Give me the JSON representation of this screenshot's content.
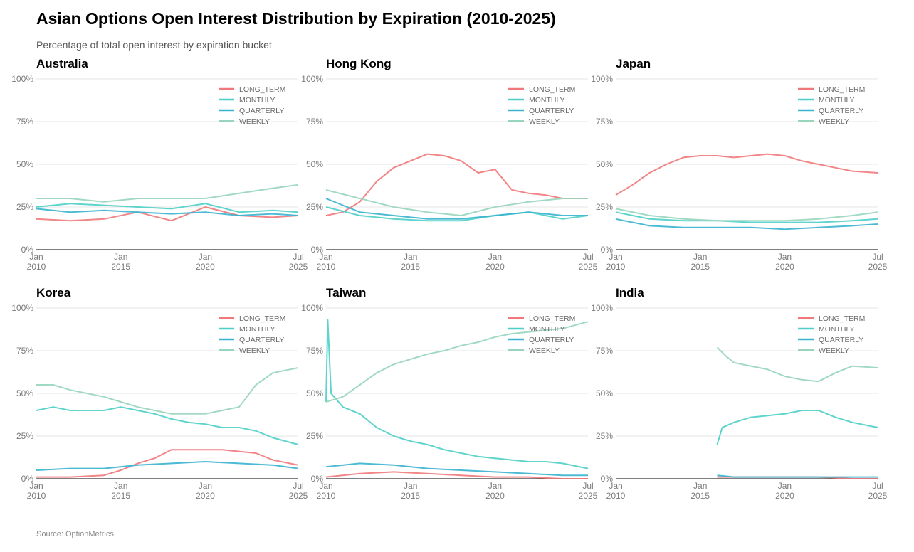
{
  "title": "Asian Options Open Interest Distribution by Expiration (2010-2025)",
  "subtitle": "Percentage of total open interest by expiration bucket",
  "source": "Source: OptionMetrics",
  "colors": {
    "LONG_TERM": "#f0787a",
    "MONTHLY": "#4dcfc7",
    "QUARTERLY": "#3ab3cf",
    "WEEKLY": "#98d5bd"
  },
  "panels_meta": {
    "y_ticks": [
      0,
      25,
      50,
      75,
      100
    ],
    "y_tick_labels": [
      "0%",
      "25%",
      "50%",
      "75%",
      "100%"
    ],
    "x_ticks": [
      {
        "pos": 2010.0,
        "line1": "Jan",
        "line2": "2010"
      },
      {
        "pos": 2015.0,
        "line1": "Jan",
        "line2": "2015"
      },
      {
        "pos": 2020.0,
        "line1": "Jan",
        "line2": "2020"
      },
      {
        "pos": 2025.5,
        "line1": "Jul",
        "line2": "2025"
      }
    ],
    "legend": [
      "LONG_TERM",
      "MONTHLY",
      "QUARTERLY",
      "WEEKLY"
    ]
  },
  "chart_data": [
    {
      "type": "line",
      "title": "Australia",
      "xlim": [
        2010.0,
        2025.5
      ],
      "ylim": [
        0,
        100
      ],
      "series": [
        {
          "name": "LONG_TERM",
          "x": [
            2010.0,
            2012.0,
            2014.0,
            2016.0,
            2018.0,
            2020.0,
            2022.0,
            2024.0,
            2025.5
          ],
          "values": [
            18,
            17,
            18,
            22,
            17,
            25,
            20,
            19,
            20
          ]
        },
        {
          "name": "MONTHLY",
          "x": [
            2010.0,
            2012.0,
            2014.0,
            2016.0,
            2018.0,
            2020.0,
            2022.0,
            2024.0,
            2025.5
          ],
          "values": [
            25,
            27,
            26,
            25,
            24,
            27,
            22,
            23,
            22
          ]
        },
        {
          "name": "QUARTERLY",
          "x": [
            2010.0,
            2012.0,
            2014.0,
            2016.0,
            2018.0,
            2020.0,
            2022.0,
            2024.0,
            2025.5
          ],
          "values": [
            24,
            22,
            23,
            22,
            21,
            22,
            20,
            21,
            20
          ]
        },
        {
          "name": "WEEKLY",
          "x": [
            2010.0,
            2012.0,
            2014.0,
            2016.0,
            2018.0,
            2020.0,
            2022.0,
            2024.0,
            2025.5
          ],
          "values": [
            30,
            30,
            28,
            30,
            30,
            30,
            33,
            36,
            38
          ]
        }
      ]
    },
    {
      "type": "line",
      "title": "Hong Kong",
      "xlim": [
        2010.0,
        2025.5
      ],
      "ylim": [
        0,
        100
      ],
      "series": [
        {
          "name": "LONG_TERM",
          "x": [
            2010.0,
            2011.0,
            2012.0,
            2013.0,
            2014.0,
            2015.0,
            2016.0,
            2017.0,
            2018.0,
            2019.0,
            2020.0,
            2021.0,
            2022.0,
            2023.0,
            2024.0,
            2025.5
          ],
          "values": [
            20,
            22,
            28,
            40,
            48,
            52,
            56,
            55,
            52,
            45,
            47,
            35,
            33,
            32,
            30,
            30
          ]
        },
        {
          "name": "MONTHLY",
          "x": [
            2010.0,
            2012.0,
            2014.0,
            2016.0,
            2018.0,
            2020.0,
            2022.0,
            2024.0,
            2025.5
          ],
          "values": [
            25,
            20,
            18,
            17,
            17,
            20,
            22,
            18,
            20
          ]
        },
        {
          "name": "QUARTERLY",
          "x": [
            2010.0,
            2012.0,
            2014.0,
            2016.0,
            2018.0,
            2020.0,
            2022.0,
            2024.0,
            2025.5
          ],
          "values": [
            30,
            22,
            20,
            18,
            18,
            20,
            22,
            20,
            20
          ]
        },
        {
          "name": "WEEKLY",
          "x": [
            2010.0,
            2012.0,
            2014.0,
            2016.0,
            2018.0,
            2020.0,
            2022.0,
            2024.0,
            2025.5
          ],
          "values": [
            35,
            30,
            25,
            22,
            20,
            25,
            28,
            30,
            30
          ]
        }
      ]
    },
    {
      "type": "line",
      "title": "Japan",
      "xlim": [
        2010.0,
        2025.5
      ],
      "ylim": [
        0,
        100
      ],
      "series": [
        {
          "name": "LONG_TERM",
          "x": [
            2010.0,
            2011.0,
            2012.0,
            2013.0,
            2014.0,
            2015.0,
            2016.0,
            2017.0,
            2018.0,
            2019.0,
            2020.0,
            2021.0,
            2022.0,
            2023.0,
            2024.0,
            2025.5
          ],
          "values": [
            32,
            38,
            45,
            50,
            54,
            55,
            55,
            54,
            55,
            56,
            55,
            52,
            50,
            48,
            46,
            45
          ]
        },
        {
          "name": "MONTHLY",
          "x": [
            2010.0,
            2012.0,
            2014.0,
            2016.0,
            2018.0,
            2020.0,
            2022.0,
            2024.0,
            2025.5
          ],
          "values": [
            22,
            18,
            17,
            17,
            16,
            16,
            16,
            17,
            18
          ]
        },
        {
          "name": "QUARTERLY",
          "x": [
            2010.0,
            2012.0,
            2014.0,
            2016.0,
            2018.0,
            2020.0,
            2022.0,
            2024.0,
            2025.5
          ],
          "values": [
            18,
            14,
            13,
            13,
            13,
            12,
            13,
            14,
            15
          ]
        },
        {
          "name": "WEEKLY",
          "x": [
            2010.0,
            2012.0,
            2014.0,
            2016.0,
            2018.0,
            2020.0,
            2022.0,
            2024.0,
            2025.5
          ],
          "values": [
            24,
            20,
            18,
            17,
            17,
            17,
            18,
            20,
            22
          ]
        }
      ]
    },
    {
      "type": "line",
      "title": "Korea",
      "xlim": [
        2010.0,
        2025.5
      ],
      "ylim": [
        0,
        100
      ],
      "series": [
        {
          "name": "LONG_TERM",
          "x": [
            2010.0,
            2012.0,
            2014.0,
            2015.0,
            2016.0,
            2017.0,
            2018.0,
            2019.0,
            2020.0,
            2021.0,
            2022.0,
            2023.0,
            2024.0,
            2025.5
          ],
          "values": [
            1,
            1,
            2,
            5,
            9,
            12,
            17,
            17,
            17,
            17,
            16,
            15,
            11,
            8
          ]
        },
        {
          "name": "MONTHLY",
          "x": [
            2010.0,
            2011.0,
            2012.0,
            2013.0,
            2014.0,
            2015.0,
            2016.0,
            2017.0,
            2018.0,
            2019.0,
            2020.0,
            2021.0,
            2022.0,
            2023.0,
            2024.0,
            2025.5
          ],
          "values": [
            40,
            42,
            40,
            40,
            40,
            42,
            40,
            38,
            35,
            33,
            32,
            30,
            30,
            28,
            24,
            20
          ]
        },
        {
          "name": "QUARTERLY",
          "x": [
            2010.0,
            2012.0,
            2014.0,
            2016.0,
            2018.0,
            2020.0,
            2022.0,
            2024.0,
            2025.5
          ],
          "values": [
            5,
            6,
            6,
            8,
            9,
            10,
            9,
            8,
            6
          ]
        },
        {
          "name": "WEEKLY",
          "x": [
            2010.0,
            2011.0,
            2012.0,
            2013.0,
            2014.0,
            2015.0,
            2016.0,
            2017.0,
            2018.0,
            2019.0,
            2020.0,
            2021.0,
            2022.0,
            2023.0,
            2024.0,
            2025.5
          ],
          "values": [
            55,
            55,
            52,
            50,
            48,
            45,
            42,
            40,
            38,
            38,
            38,
            40,
            42,
            55,
            62,
            65
          ]
        }
      ]
    },
    {
      "type": "line",
      "title": "Taiwan",
      "xlim": [
        2010.0,
        2025.5
      ],
      "ylim": [
        0,
        100
      ],
      "series": [
        {
          "name": "LONG_TERM",
          "x": [
            2010.0,
            2012.0,
            2014.0,
            2016.0,
            2018.0,
            2020.0,
            2022.0,
            2024.0,
            2025.5
          ],
          "values": [
            1,
            3,
            4,
            3,
            2,
            1,
            1,
            0,
            0
          ]
        },
        {
          "name": "MONTHLY",
          "x": [
            2010.0,
            2010.1,
            2010.3,
            2011.0,
            2012.0,
            2013.0,
            2014.0,
            2015.0,
            2016.0,
            2017.0,
            2018.0,
            2019.0,
            2020.0,
            2021.0,
            2022.0,
            2023.0,
            2024.0,
            2025.5
          ],
          "values": [
            45,
            93,
            50,
            42,
            38,
            30,
            25,
            22,
            20,
            17,
            15,
            13,
            12,
            11,
            10,
            10,
            9,
            6
          ]
        },
        {
          "name": "QUARTERLY",
          "x": [
            2010.0,
            2012.0,
            2014.0,
            2016.0,
            2018.0,
            2020.0,
            2022.0,
            2024.0,
            2025.5
          ],
          "values": [
            7,
            9,
            8,
            6,
            5,
            4,
            3,
            2,
            2
          ]
        },
        {
          "name": "WEEKLY",
          "x": [
            2010.0,
            2011.0,
            2012.0,
            2013.0,
            2014.0,
            2015.0,
            2016.0,
            2017.0,
            2018.0,
            2019.0,
            2020.0,
            2021.0,
            2022.0,
            2023.0,
            2024.0,
            2025.5
          ],
          "values": [
            45,
            48,
            55,
            62,
            67,
            70,
            73,
            75,
            78,
            80,
            83,
            85,
            86,
            87,
            88,
            92
          ]
        }
      ]
    },
    {
      "type": "line",
      "title": "India",
      "xlim": [
        2010.0,
        2025.5
      ],
      "ylim": [
        0,
        100
      ],
      "series": [
        {
          "name": "LONG_TERM",
          "x": [
            2016.0,
            2018.0,
            2020.0,
            2022.0,
            2024.0,
            2025.5
          ],
          "values": [
            1,
            1,
            1,
            1,
            0,
            0
          ]
        },
        {
          "name": "MONTHLY",
          "x": [
            2016.0,
            2016.3,
            2017.0,
            2018.0,
            2019.0,
            2020.0,
            2021.0,
            2022.0,
            2023.0,
            2024.0,
            2025.5
          ],
          "values": [
            20,
            30,
            33,
            36,
            37,
            38,
            40,
            40,
            36,
            33,
            30
          ]
        },
        {
          "name": "QUARTERLY",
          "x": [
            2016.0,
            2017.0,
            2018.0,
            2019.0,
            2020.0,
            2021.0,
            2022.0,
            2023.0,
            2024.0,
            2025.5
          ],
          "values": [
            2,
            1,
            1,
            1,
            1,
            1,
            1,
            1,
            1,
            1
          ]
        },
        {
          "name": "WEEKLY",
          "x": [
            2016.0,
            2016.5,
            2017.0,
            2018.0,
            2019.0,
            2020.0,
            2021.0,
            2022.0,
            2023.0,
            2024.0,
            2025.5
          ],
          "values": [
            77,
            72,
            68,
            66,
            64,
            60,
            58,
            57,
            62,
            66,
            65
          ]
        }
      ]
    }
  ]
}
